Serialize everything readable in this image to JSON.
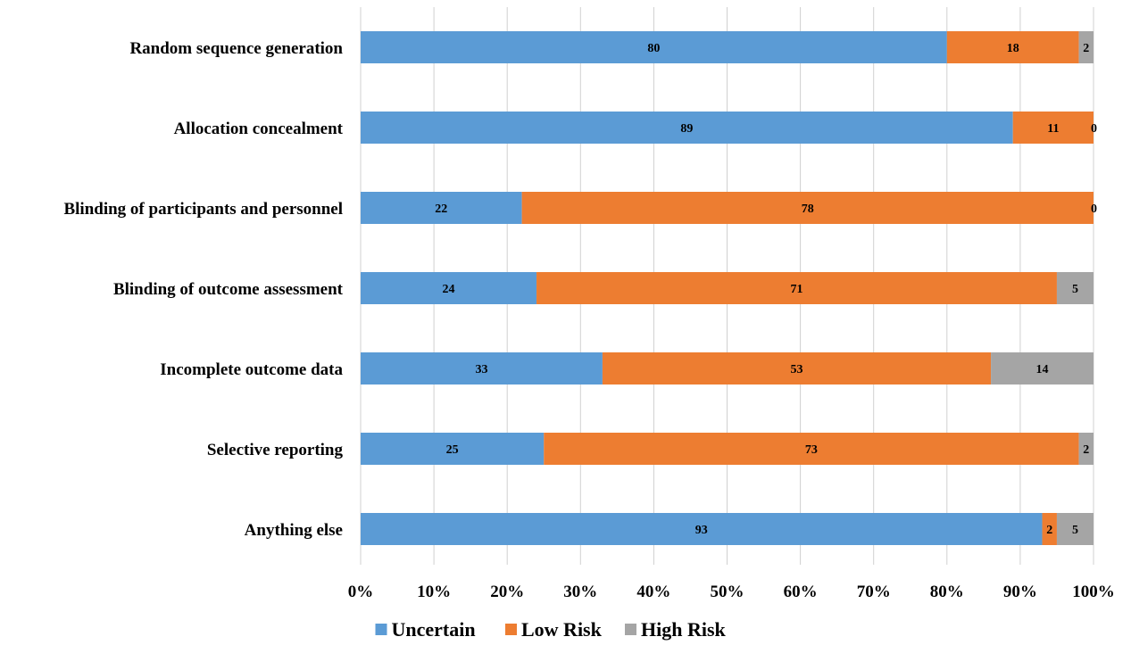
{
  "chart_data": {
    "type": "bar",
    "orientation": "horizontal",
    "stacked": "percent",
    "categories": [
      "Random sequence generation",
      "Allocation concealment",
      "Blinding of participants and personnel",
      "Blinding of outcome assessment",
      "Incomplete outcome data",
      "Selective reporting",
      "Anything else"
    ],
    "series": [
      {
        "name": "Uncertain",
        "color": "#5b9bd5",
        "values": [
          80,
          89,
          22,
          24,
          33,
          25,
          93
        ]
      },
      {
        "name": "Low Risk",
        "color": "#ed7d31",
        "values": [
          18,
          11,
          78,
          71,
          53,
          73,
          2
        ]
      },
      {
        "name": "High Risk",
        "color": "#a5a5a5",
        "values": [
          2,
          0,
          0,
          5,
          14,
          2,
          5
        ]
      }
    ],
    "x_ticks": [
      "0%",
      "10%",
      "20%",
      "30%",
      "40%",
      "50%",
      "60%",
      "70%",
      "80%",
      "90%",
      "100%"
    ],
    "xlim": [
      0,
      100
    ],
    "grid": "vertical",
    "legend_position": "bottom",
    "title": "",
    "xlabel": "",
    "ylabel": ""
  }
}
